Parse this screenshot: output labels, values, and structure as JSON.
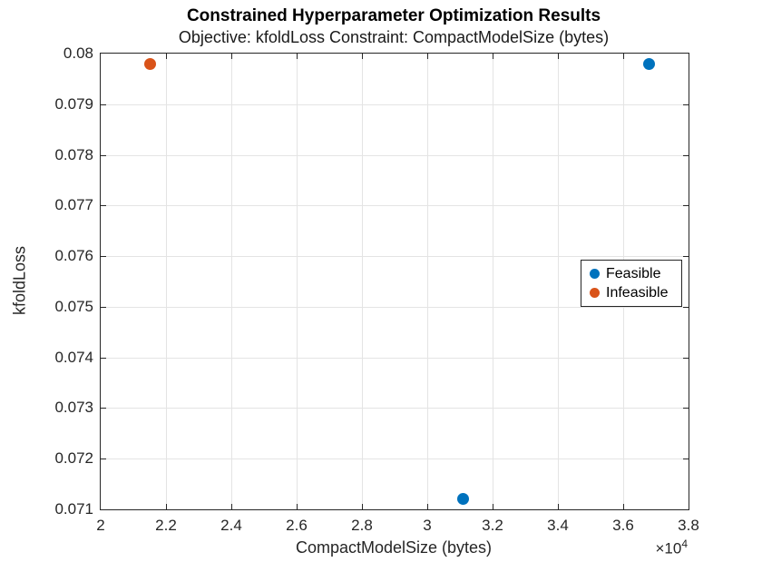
{
  "colors": {
    "feasible": "#0072BD",
    "infeasible": "#D95319",
    "grid": "#e4e4e4",
    "axis": "#262626",
    "background": "#ffffff"
  },
  "chart_data": {
    "type": "scatter",
    "title": "Constrained Hyperparameter Optimization Results",
    "subtitle": "Objective: kfoldLoss Constraint: CompactModelSize (bytes)",
    "xlabel": "CompactModelSize (bytes)",
    "ylabel": "kfoldLoss",
    "x_multiplier_base": "×10",
    "x_multiplier_exponent": "4",
    "xlim": [
      20000,
      38000
    ],
    "ylim": [
      0.071,
      0.08
    ],
    "x_ticks": [
      20000,
      22000,
      24000,
      26000,
      28000,
      30000,
      32000,
      34000,
      36000,
      38000
    ],
    "x_tick_labels": [
      "2",
      "2.2",
      "2.4",
      "2.6",
      "2.8",
      "3",
      "3.2",
      "3.4",
      "3.6",
      "3.8"
    ],
    "y_ticks": [
      0.071,
      0.072,
      0.073,
      0.074,
      0.075,
      0.076,
      0.077,
      0.078,
      0.079,
      0.08
    ],
    "y_tick_labels": [
      "0.071",
      "0.072",
      "0.073",
      "0.074",
      "0.075",
      "0.076",
      "0.077",
      "0.078",
      "0.079",
      "0.08"
    ],
    "grid": true,
    "legend_position": "inside-right-middle",
    "series": [
      {
        "name": "Feasible",
        "color": "#0072BD",
        "marker": "circle",
        "points": [
          {
            "x": 36800,
            "y": 0.0798
          },
          {
            "x": 31100,
            "y": 0.0712
          }
        ]
      },
      {
        "name": "Infeasible",
        "color": "#D95319",
        "marker": "circle",
        "points": [
          {
            "x": 21500,
            "y": 0.0798
          }
        ]
      }
    ]
  }
}
